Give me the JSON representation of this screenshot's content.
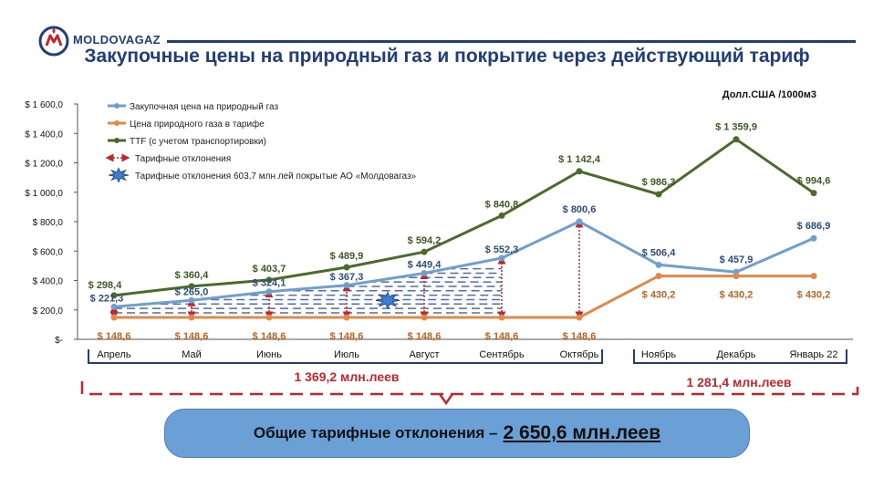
{
  "header": {
    "brand": "MOLDOVAGAZ",
    "title": "Закупочные цены на природный газ и покрытие через действующий тариф"
  },
  "chart_data": {
    "type": "line",
    "unit_label": "Долл.США /1000м3",
    "categories": [
      "Апрель",
      "Май",
      "Июнь",
      "Июль",
      "Август",
      "Сентябрь",
      "Октябрь",
      "Ноябрь",
      "Декабрь",
      "Январь 22"
    ],
    "ylim": [
      0,
      1600
    ],
    "yticks": [
      0,
      200,
      400,
      600,
      800,
      1000,
      1200,
      1400,
      1600
    ],
    "ytick_labels": [
      "$-",
      "$ 200,0",
      "$ 400,0",
      "$ 600,0",
      "$ 800,0",
      "$ 1 000,0",
      "$ 1 200,0",
      "$ 1 400,0",
      "$ 1 600,0"
    ],
    "series": [
      {
        "name": "Закупочная цена на природный газ",
        "color": "#6f9fcf",
        "values": [
          221.3,
          265.0,
          324.1,
          367.3,
          449.4,
          552.3,
          800.6,
          506.4,
          457.9,
          686.9
        ],
        "labels": [
          "$ 221,3",
          "$ 265,0",
          "$ 324,1",
          "$ 367,3",
          "$ 449,4",
          "$ 552,3",
          "$ 800,6",
          "$ 506,4",
          "$ 457,9",
          "$ 686,9"
        ]
      },
      {
        "name": "Цена природного газа в тарифе",
        "color": "#e08a4a",
        "values": [
          148.6,
          148.6,
          148.6,
          148.6,
          148.6,
          148.6,
          148.6,
          430.2,
          430.2,
          430.2
        ],
        "labels": [
          "$ 148,6",
          "$ 148,6",
          "$ 148,6",
          "$ 148,6",
          "$ 148,6",
          "$ 148,6",
          "$ 148,6",
          "$ 430,2",
          "$ 430,2",
          "$ 430,2"
        ]
      },
      {
        "name": "TTF (с учетом транспортировки)",
        "color": "#4a6b2a",
        "values": [
          298.4,
          360.4,
          403.7,
          489.9,
          594.2,
          840.8,
          1142.4,
          986.3,
          1359.9,
          994.6
        ],
        "labels": [
          "$ 298,4",
          "$ 360,4",
          "$ 403,7",
          "$ 489,9",
          "$ 594,2",
          "$ 840,8",
          "$ 1 142,4",
          "$ 986,3",
          "$ 1 359,9",
          "$ 994,6"
        ]
      }
    ],
    "legend_extra": [
      "Тарифные отклонения",
      "Тарифные отклонения 603,7 млн лей покрытые АО «Молдовагаз»"
    ],
    "group_totals": [
      {
        "label": "1 369,2 млн.леев",
        "from": 0,
        "to": 6
      },
      {
        "label": "1 281,4 млн.леев",
        "from": 7,
        "to": 9
      }
    ],
    "deviation_color": "#c0272d"
  },
  "summary": {
    "text": "Общие тарифные отклонения –",
    "value": "2 650,6 млн.леев"
  }
}
